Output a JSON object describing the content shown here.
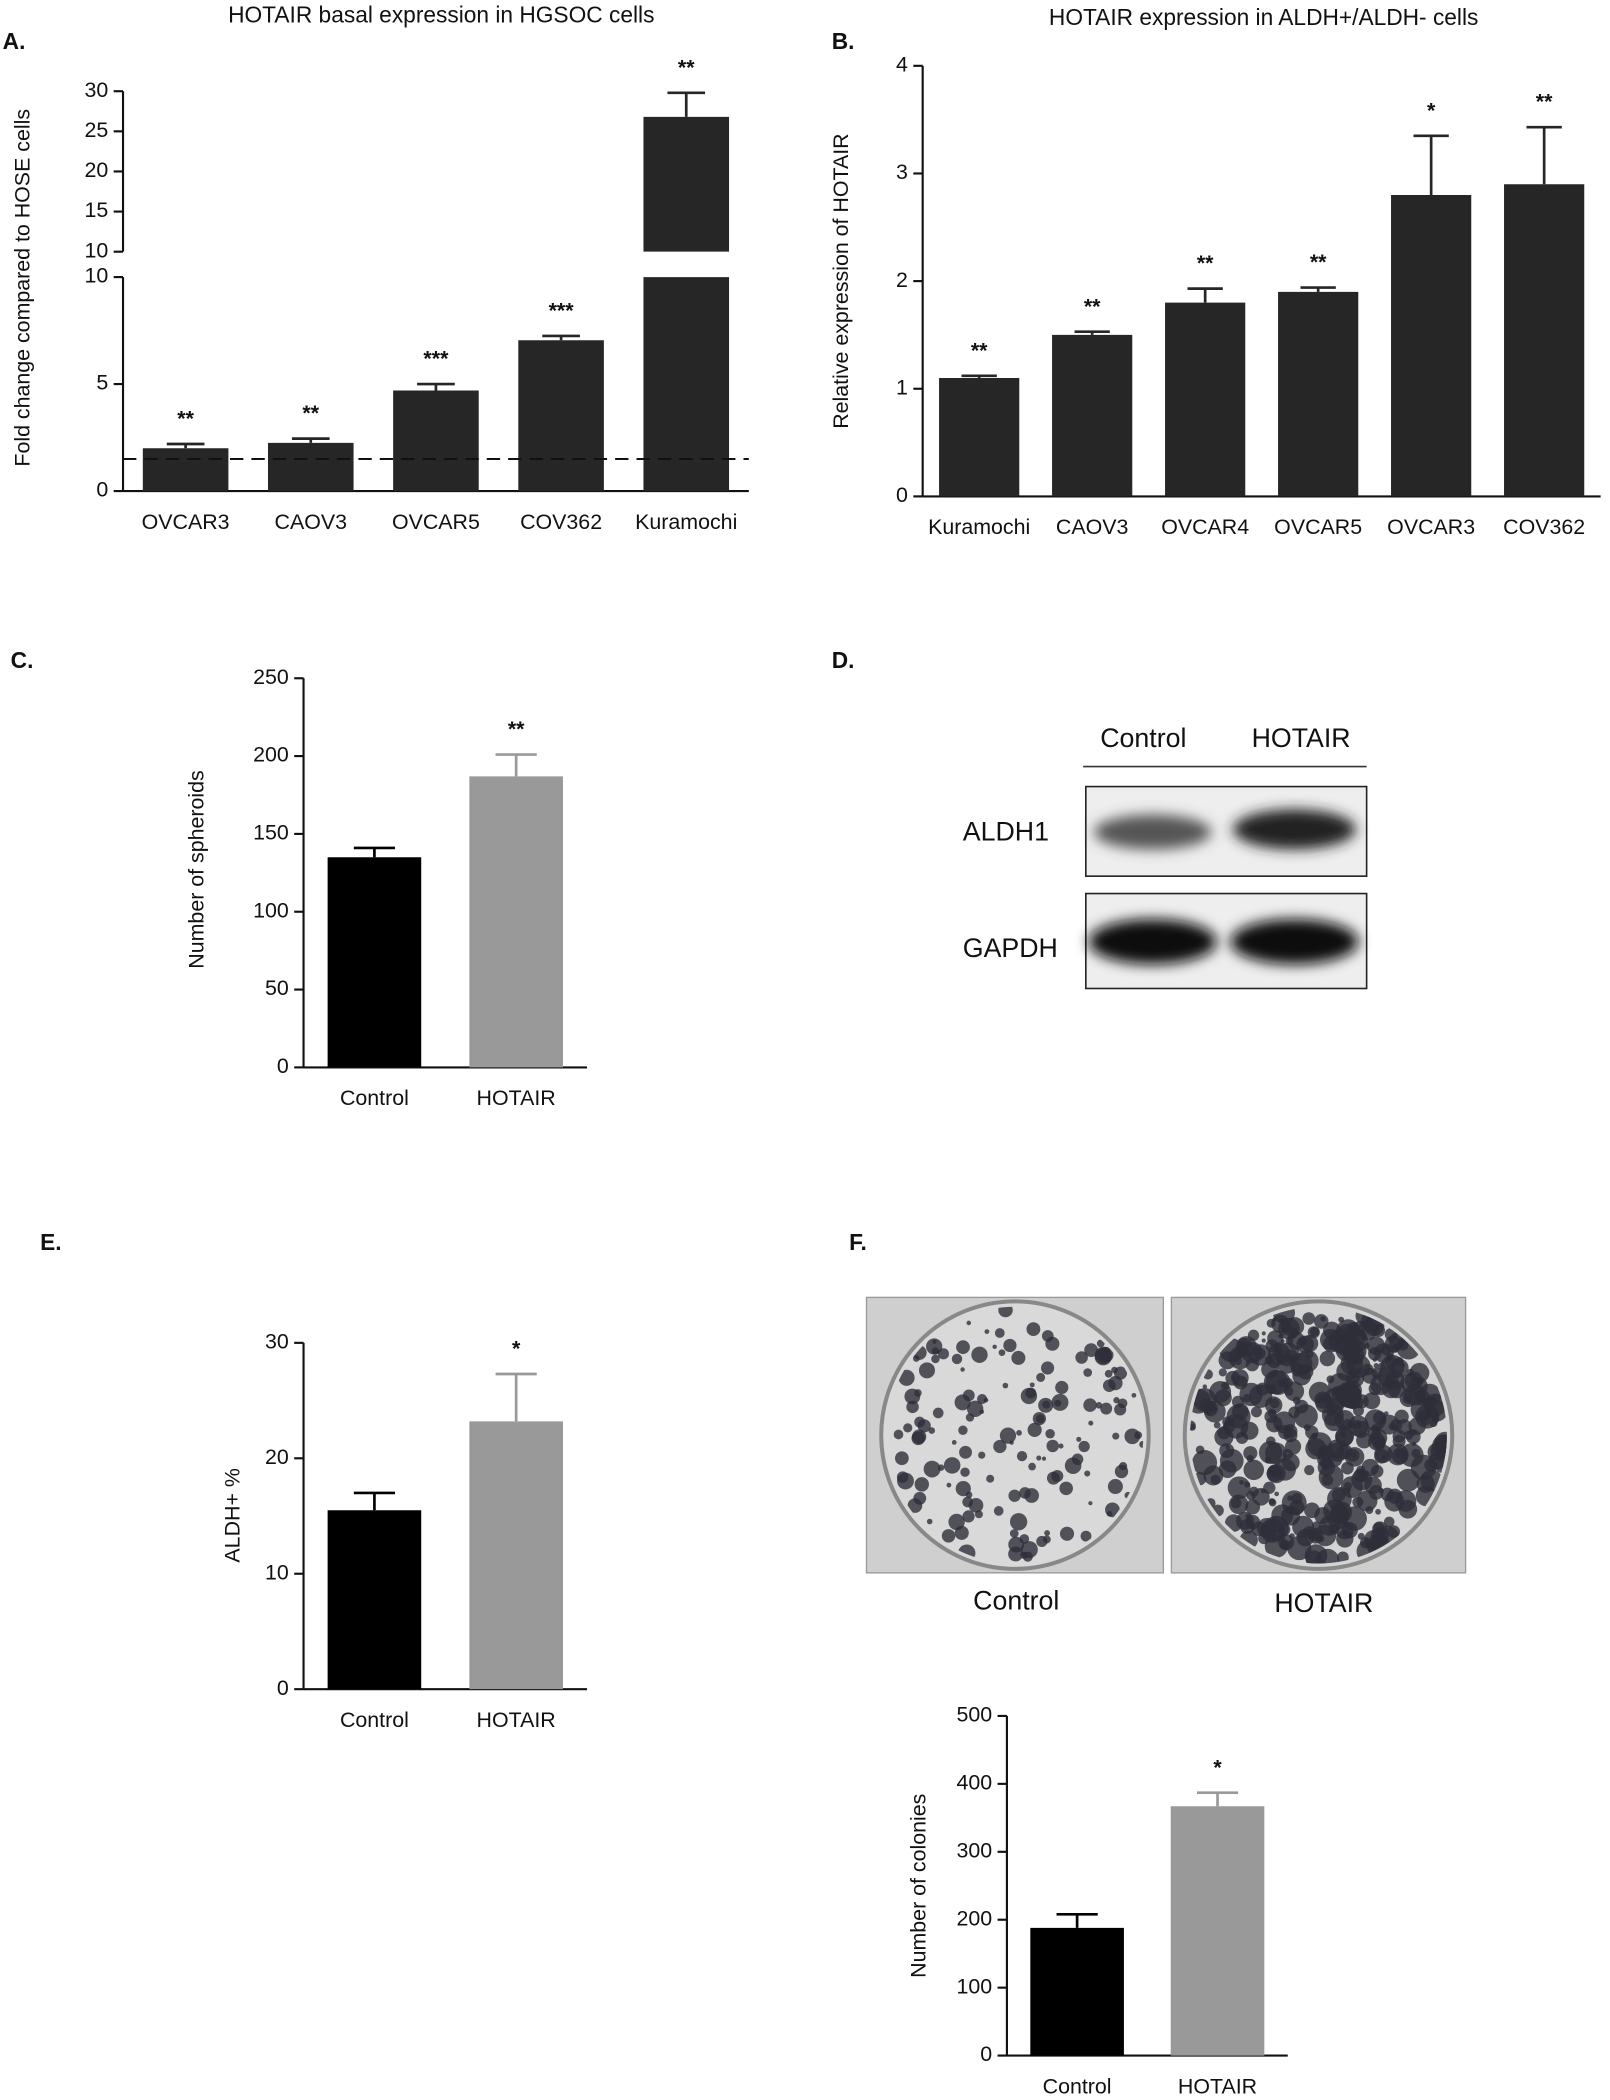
{
  "chart_data": [
    {
      "type": "bar",
      "panel_label": "A.",
      "title": "HOTAIR basal expression in HGSOC cells",
      "y_label": "Fold change compared to HOSE cells",
      "categories": [
        "OVCAR3",
        "CAOV3",
        "OVCAR5",
        "COV362",
        "Kuramochi"
      ],
      "values": [
        2.0,
        2.25,
        4.7,
        7.05,
        26.8
      ],
      "errors": [
        0.2,
        0.2,
        0.3,
        0.2,
        3.0
      ],
      "annotations": [
        "**",
        "**",
        "***",
        "***",
        "**"
      ],
      "color": "#262626",
      "segments": [
        {
          "ylim": [
            0,
            10
          ],
          "yticks": [
            0,
            5,
            10
          ]
        },
        {
          "ylim": [
            10,
            30
          ],
          "yticks": [
            10,
            15,
            20,
            25,
            30
          ]
        }
      ],
      "reference_line": 1.5
    },
    {
      "type": "bar",
      "panel_label": "B.",
      "title": "HOTAIR expression in ALDH+/ALDH- cells",
      "y_label": "Relative expression of HOTAIR",
      "categories": [
        "Kuramochi",
        "CAOV3",
        "OVCAR4",
        "OVCAR5",
        "OVCAR3",
        "COV362"
      ],
      "values": [
        1.1,
        1.5,
        1.8,
        1.9,
        2.8,
        2.9
      ],
      "errors": [
        0.02,
        0.03,
        0.13,
        0.04,
        0.55,
        0.53
      ],
      "annotations": [
        "**",
        "**",
        "**",
        "**",
        "*",
        "**"
      ],
      "color": "#262626",
      "ylim": [
        0,
        4
      ],
      "yticks": [
        0,
        1,
        2,
        3,
        4
      ]
    },
    {
      "type": "bar",
      "panel_label": "C.",
      "y_label": "Number of spheroids",
      "categories": [
        "Control",
        "HOTAIR"
      ],
      "values": [
        135,
        187
      ],
      "errors": [
        6,
        14
      ],
      "annotations": [
        null,
        "**"
      ],
      "colors": [
        "#000000",
        "#999999"
      ],
      "ylim": [
        0,
        250
      ],
      "yticks": [
        0,
        50,
        100,
        150,
        200,
        250
      ]
    },
    {
      "type": "bar",
      "panel_label": "E.",
      "y_label": "ALDH+ %",
      "categories": [
        "Control",
        "HOTAIR"
      ],
      "values": [
        15.5,
        23.2
      ],
      "errors": [
        1.5,
        4.1
      ],
      "annotations": [
        null,
        "*"
      ],
      "colors": [
        "#000000",
        "#999999"
      ],
      "ylim": [
        0,
        30
      ],
      "yticks": [
        0,
        10,
        20,
        30
      ]
    },
    {
      "type": "bar",
      "y_label": "Number of colonies",
      "categories": [
        "Control",
        "HOTAIR"
      ],
      "values": [
        188,
        367
      ],
      "errors": [
        20,
        20
      ],
      "annotations": [
        null,
        "*"
      ],
      "colors": [
        "#000000",
        "#999999"
      ],
      "ylim": [
        0,
        500
      ],
      "yticks": [
        0,
        100,
        200,
        300,
        400,
        500
      ]
    }
  ],
  "blot": {
    "panel_label": "D.",
    "columns": [
      "Control",
      "HOTAIR"
    ],
    "rows": [
      "ALDH1",
      "GAPDH"
    ]
  },
  "colony_photos": {
    "panel_label": "F.",
    "captions": [
      "Control",
      "HOTAIR"
    ]
  }
}
